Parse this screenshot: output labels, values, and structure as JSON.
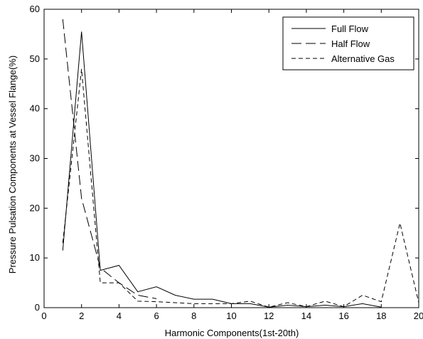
{
  "chart_data": {
    "type": "line",
    "xlabel": "Harmonic Components(1st-20th)",
    "ylabel": "Pressure Pulsation Components at Vessel Flange(%)",
    "xlim": [
      0,
      20
    ],
    "ylim": [
      0,
      60
    ],
    "xticks": [
      0,
      2,
      4,
      6,
      8,
      10,
      12,
      14,
      16,
      18,
      20
    ],
    "yticks": [
      0,
      10,
      20,
      30,
      40,
      50,
      60
    ],
    "grid": false,
    "legend_position": "top-right",
    "series": [
      {
        "name": "Full Flow",
        "style": "solid",
        "color": "#000000",
        "x": [
          1,
          2,
          3,
          4,
          5,
          6,
          7,
          8,
          9,
          10,
          11,
          12,
          13,
          14,
          15,
          16,
          17,
          18
        ],
        "values": [
          11.5,
          55.5,
          7.5,
          8.5,
          3.2,
          4.2,
          2.5,
          1.7,
          1.7,
          0.8,
          0.8,
          0.1,
          0.5,
          0.2,
          0.5,
          0.2,
          0.8,
          0.1
        ]
      },
      {
        "name": "Half Flow",
        "style": "dashdot",
        "color": "#000000",
        "x": [
          1,
          2,
          3,
          4,
          5,
          6
        ],
        "values": [
          58,
          22,
          8,
          5,
          2.5,
          1.8
        ]
      },
      {
        "name": "Alternative Gas",
        "style": "dashed",
        "color": "#000000",
        "x": [
          1,
          2,
          3,
          4,
          5,
          6,
          7,
          8,
          9,
          10,
          11,
          12,
          13,
          14,
          15,
          16,
          17,
          18,
          19,
          20
        ],
        "values": [
          13,
          48,
          5,
          5,
          1.3,
          1.2,
          1,
          0.8,
          0.8,
          0.8,
          1.3,
          0.1,
          1,
          0.2,
          1.3,
          0.2,
          2.5,
          1.2,
          17,
          1
        ]
      }
    ]
  }
}
